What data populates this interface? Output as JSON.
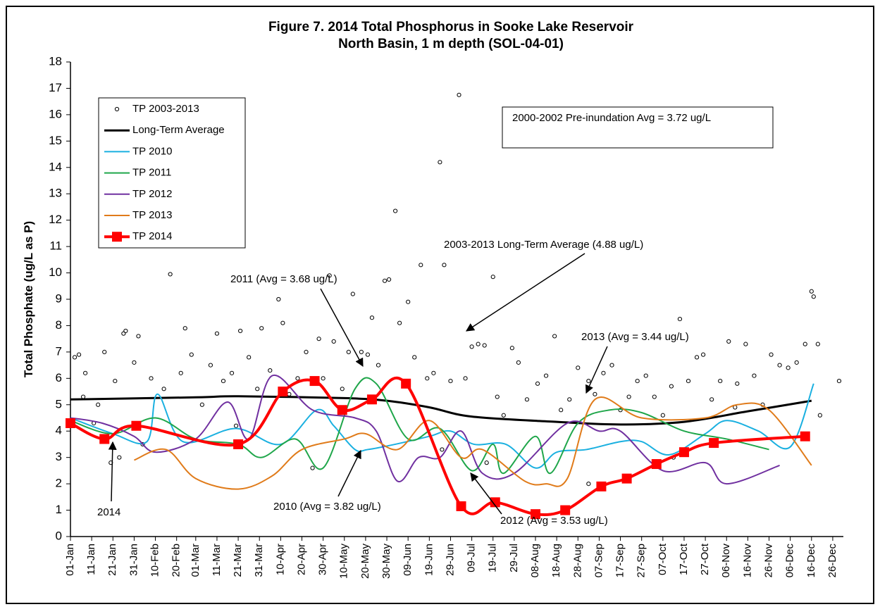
{
  "chart_data": {
    "type": "line",
    "title": [
      "Figure 7. 2014 Total Phosphorus in Sooke Lake Reservoir",
      "North Basin, 1 m depth (SOL-04-01)"
    ],
    "y_label": "Total Phosphate (ug/L as P)",
    "ylim": [
      0,
      18
    ],
    "yticks": [
      0,
      1,
      2,
      3,
      4,
      5,
      6,
      7,
      8,
      9,
      10,
      11,
      12,
      13,
      14,
      15,
      16,
      17,
      18
    ],
    "xlim": [
      "01-Jan",
      "31-Dec"
    ],
    "xticks": [
      "01-Jan",
      "11-Jan",
      "21-Jan",
      "31-Jan",
      "10-Feb",
      "20-Feb",
      "01-Mar",
      "11-Mar",
      "21-Mar",
      "31-Mar",
      "10-Apr",
      "20-Apr",
      "30-Apr",
      "10-May",
      "20-May",
      "30-May",
      "09-Jun",
      "19-Jun",
      "29-Jun",
      "09-Jul",
      "19-Jul",
      "29-Jul",
      "08-Aug",
      "18-Aug",
      "28-Aug",
      "07-Sep",
      "17-Sep",
      "27-Sep",
      "07-Oct",
      "17-Oct",
      "27-Oct",
      "06-Nov",
      "16-Nov",
      "26-Nov",
      "06-Dec",
      "16-Dec",
      "26-Dec"
    ],
    "grid": false,
    "legend": "upper left",
    "smooth": true,
    "series": [
      {
        "name": "TP 2003-2013",
        "color": "#000000",
        "mode": "markers",
        "x": [
          "03-Jan",
          "05-Jan",
          "07-Jan",
          "08-Jan",
          "12-Jan",
          "14-Jan",
          "17-Jan",
          "20-Jan",
          "22-Jan",
          "24-Jan",
          "26-Jan",
          "27-Jan",
          "31-Jan",
          "02-Feb",
          "04-Feb",
          "08-Feb",
          "14-Feb",
          "17-Feb",
          "22-Feb",
          "24-Feb",
          "27-Feb",
          "04-Mar",
          "08-Mar",
          "11-Mar",
          "14-Mar",
          "18-Mar",
          "20-Mar",
          "22-Mar",
          "26-Mar",
          "30-Mar",
          "01-Apr",
          "05-Apr",
          "09-Apr",
          "11-Apr",
          "14-Apr",
          "18-Apr",
          "22-Apr",
          "25-Apr",
          "28-Apr",
          "30-Apr",
          "03-May",
          "05-May",
          "09-May",
          "12-May",
          "14-May",
          "18-May",
          "21-May",
          "23-May",
          "26-May",
          "29-May",
          "31-May",
          "03-Jun",
          "05-Jun",
          "09-Jun",
          "12-Jun",
          "15-Jun",
          "18-Jun",
          "21-Jun",
          "24-Jun",
          "25-Jun",
          "26-Jun",
          "29-Jun",
          "03-Jul",
          "06-Jul",
          "09-Jul",
          "12-Jul",
          "15-Jul",
          "16-Jul",
          "19-Jul",
          "21-Jul",
          "24-Jul",
          "28-Jul",
          "31-Jul",
          "04-Aug",
          "09-Aug",
          "13-Aug",
          "17-Aug",
          "20-Aug",
          "24-Aug",
          "28-Aug",
          "02-Sep",
          "02-Sep",
          "05-Sep",
          "09-Sep",
          "13-Sep",
          "17-Sep",
          "21-Sep",
          "25-Sep",
          "29-Sep",
          "03-Oct",
          "07-Oct",
          "11-Oct",
          "12-Oct",
          "15-Oct",
          "19-Oct",
          "23-Oct",
          "26-Oct",
          "30-Oct",
          "03-Nov",
          "07-Nov",
          "10-Nov",
          "11-Nov",
          "15-Nov",
          "19-Nov",
          "23-Nov",
          "27-Nov",
          "01-Dec",
          "05-Dec",
          "09-Dec",
          "13-Dec",
          "16-Dec",
          "17-Dec",
          "19-Dec",
          "20-Dec",
          "29-Dec"
        ],
        "values": [
          6.8,
          6.9,
          5.3,
          6.2,
          4.3,
          5.0,
          7.0,
          2.8,
          5.9,
          3.0,
          7.7,
          7.8,
          6.6,
          7.6,
          3.5,
          6.0,
          5.6,
          9.95,
          6.2,
          7.9,
          6.9,
          5.0,
          6.5,
          7.7,
          5.9,
          6.2,
          4.2,
          7.8,
          6.8,
          5.6,
          7.9,
          6.3,
          9.0,
          8.1,
          5.4,
          6.0,
          7.0,
          2.6,
          7.5,
          6.0,
          9.9,
          7.4,
          5.6,
          7.0,
          9.2,
          7.0,
          6.9,
          8.3,
          6.5,
          9.7,
          9.75,
          12.35,
          8.1,
          8.9,
          6.8,
          10.3,
          6.0,
          6.2,
          14.2,
          3.3,
          10.3,
          5.9,
          16.75,
          6.0,
          7.2,
          7.3,
          7.25,
          2.8,
          9.85,
          5.3,
          4.6,
          7.15,
          6.6,
          5.2,
          5.8,
          6.1,
          7.6,
          4.8,
          5.2,
          6.4,
          5.9,
          2.0,
          5.4,
          6.2,
          6.5,
          4.8,
          5.3,
          5.9,
          6.1,
          5.3,
          4.6,
          5.7,
          3.0,
          8.25,
          5.9,
          6.8,
          6.9,
          5.2,
          5.9,
          7.4,
          4.9,
          5.8,
          7.3,
          6.1,
          5.0,
          6.9,
          6.5,
          6.4,
          6.6,
          7.3,
          9.3,
          9.1,
          7.3,
          4.6,
          5.9
        ]
      },
      {
        "name": "Long-Term Average",
        "color": "#000000",
        "mode": "lines",
        "width": 3,
        "x": [
          "01-Jan",
          "01-Mar",
          "21-Mar",
          "10-May",
          "30-May",
          "19-Jun",
          "09-Jul",
          "18-Aug",
          "17-Sep",
          "17-Oct",
          "16-Nov",
          "16-Dec"
        ],
        "values": [
          5.2,
          5.28,
          5.32,
          5.25,
          5.15,
          4.9,
          4.55,
          4.35,
          4.25,
          4.35,
          4.75,
          5.15
        ]
      },
      {
        "name": "TP 2010",
        "color": "#1ab0e0",
        "mode": "lines",
        "width": 2,
        "x": [
          "01-Jan",
          "21-Jan",
          "06-Feb",
          "11-Feb",
          "23-Feb",
          "20-Mar",
          "10-Apr",
          "27-Apr",
          "05-May",
          "15-May",
          "21-May",
          "03-Jun",
          "19-Jun",
          "29-Jun",
          "10-Jul",
          "25-Jul",
          "08-Aug",
          "18-Aug",
          "01-Sep",
          "17-Sep",
          "27-Sep",
          "10-Oct",
          "27-Oct",
          "06-Nov",
          "21-Nov",
          "06-Dec",
          "17-Dec"
        ],
        "values": [
          4.5,
          3.9,
          3.6,
          5.4,
          3.6,
          4.1,
          3.5,
          4.8,
          4.2,
          3.3,
          3.3,
          3.5,
          3.8,
          4.0,
          3.5,
          3.5,
          2.6,
          3.2,
          3.3,
          3.6,
          3.6,
          3.1,
          3.9,
          4.4,
          4.0,
          3.4,
          5.8
        ]
      },
      {
        "name": "TP 2011",
        "color": "#1fa64a",
        "mode": "lines",
        "width": 2,
        "x": [
          "01-Jan",
          "21-Jan",
          "10-Feb",
          "01-Mar",
          "21-Mar",
          "01-Apr",
          "17-Apr",
          "30-Apr",
          "15-May",
          "25-May",
          "09-Jun",
          "24-Jun",
          "09-Jul",
          "19-Jul",
          "24-Jul",
          "08-Aug",
          "15-Aug",
          "28-Aug",
          "12-Sep",
          "27-Sep",
          "17-Oct",
          "06-Nov",
          "26-Nov"
        ],
        "values": [
          4.4,
          3.9,
          4.5,
          3.7,
          3.5,
          3.0,
          3.7,
          2.6,
          5.6,
          5.8,
          3.7,
          4.1,
          2.5,
          3.5,
          2.4,
          3.8,
          2.4,
          4.3,
          4.8,
          4.7,
          4.0,
          3.7,
          3.3
        ]
      },
      {
        "name": "TP 2012",
        "color": "#7030a0",
        "mode": "lines",
        "width": 2,
        "x": [
          "01-Jan",
          "16-Jan",
          "31-Jan",
          "10-Feb",
          "01-Mar",
          "16-Mar",
          "26-Mar",
          "06-Apr",
          "25-Apr",
          "15-May",
          "25-May",
          "04-Jun",
          "14-Jun",
          "24-Jun",
          "04-Jul",
          "14-Jul",
          "29-Jul",
          "23-Aug",
          "07-Sep",
          "17-Sep",
          "07-Oct",
          "27-Oct",
          "06-Nov",
          "01-Dec"
        ],
        "values": [
          4.5,
          4.3,
          3.8,
          3.2,
          3.7,
          5.1,
          3.7,
          6.1,
          4.8,
          4.5,
          4.0,
          2.1,
          3.0,
          3.0,
          4.0,
          2.4,
          2.4,
          4.3,
          4.0,
          4.0,
          2.5,
          2.8,
          2.0,
          2.7
        ]
      },
      {
        "name": "TP 2013",
        "color": "#e07b1a",
        "mode": "lines",
        "width": 2,
        "x": [
          "31-Jan",
          "15-Feb",
          "01-Mar",
          "21-Mar",
          "06-Apr",
          "20-Apr",
          "10-May",
          "20-May",
          "04-Jun",
          "19-Jun",
          "04-Jul",
          "14-Jul",
          "03-Aug",
          "13-Aug",
          "23-Aug",
          "05-Sep",
          "27-Sep",
          "27-Oct",
          "11-Nov",
          "26-Nov",
          "16-Dec"
        ],
        "values": [
          2.9,
          3.3,
          2.2,
          1.8,
          2.3,
          3.3,
          3.7,
          3.9,
          3.3,
          4.4,
          3.0,
          3.3,
          2.1,
          2.0,
          2.2,
          5.2,
          4.5,
          4.5,
          5.0,
          4.8,
          2.7
        ]
      },
      {
        "name": "TP 2014",
        "color": "#ff0000",
        "mode": "lines+markers",
        "width": 4,
        "x": [
          "01-Jan",
          "17-Jan",
          "01-Feb",
          "21-Mar",
          "11-Apr",
          "26-Apr",
          "09-May",
          "23-May",
          "08-Jun",
          "04-Jul",
          "20-Jul",
          "08-Aug",
          "22-Aug",
          "08-Sep",
          "20-Sep",
          "04-Oct",
          "17-Oct",
          "31-Oct",
          "13-Dec"
        ],
        "values": [
          4.3,
          3.7,
          4.2,
          3.5,
          5.5,
          5.9,
          4.8,
          5.2,
          5.8,
          1.15,
          1.3,
          0.85,
          1.0,
          1.9,
          2.2,
          2.75,
          3.2,
          3.55,
          3.8
        ]
      }
    ],
    "annotations": [
      "2000-2002 Pre-inundation Avg = 3.72 ug/L",
      "2003-2013 Long-Term Average (4.88 ug/L)",
      "2011 (Avg = 3.68 ug/L)",
      "2013 (Avg = 3.44 ug/L)",
      "2010 (Avg = 3.82 ug/L)",
      "2012 (Avg = 3.53 ug/L)",
      "2014"
    ]
  }
}
